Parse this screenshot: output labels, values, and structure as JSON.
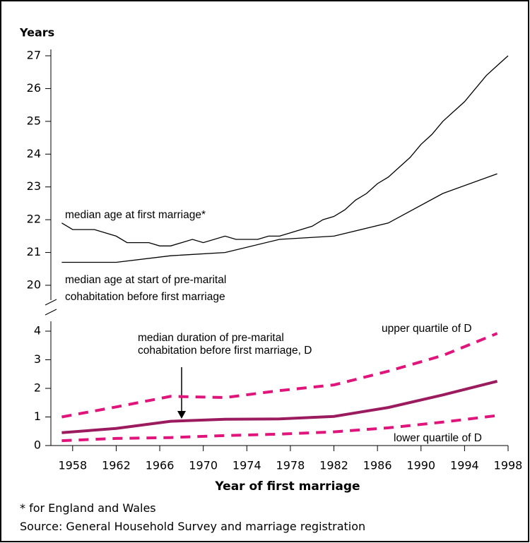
{
  "chart_data": [
    {
      "type": "line",
      "y_label": "Years",
      "xlim": [
        1956,
        1998
      ],
      "ylim": [
        20,
        27
      ],
      "yticks": [
        20,
        21,
        22,
        23,
        24,
        25,
        26,
        27
      ],
      "series": [
        {
          "name": "median age at first marriage*",
          "color": "#000000",
          "dash": false,
          "x": [
            1957,
            1958,
            1960,
            1962,
            1963,
            1965,
            1966,
            1967,
            1969,
            1970,
            1972,
            1973,
            1975,
            1976,
            1977,
            1978,
            1980,
            1981,
            1982,
            1983,
            1984,
            1985,
            1986,
            1987,
            1989,
            1990,
            1991,
            1992,
            1994,
            1996,
            1997,
            1998
          ],
          "values": [
            21.9,
            21.7,
            21.7,
            21.5,
            21.3,
            21.3,
            21.2,
            21.2,
            21.4,
            21.3,
            21.5,
            21.4,
            21.4,
            21.5,
            21.5,
            21.6,
            21.8,
            22.0,
            22.1,
            22.3,
            22.6,
            22.8,
            23.1,
            23.3,
            23.9,
            24.3,
            24.6,
            25.0,
            25.6,
            26.4,
            26.7,
            27.0
          ]
        },
        {
          "name": "median age at start of pre-marital cohabitation before first marriage",
          "color": "#000000",
          "dash": false,
          "x": [
            1957,
            1962,
            1967,
            1972,
            1977,
            1982,
            1987,
            1992,
            1997
          ],
          "values": [
            20.7,
            20.7,
            20.9,
            21.0,
            21.4,
            21.5,
            21.9,
            22.8,
            23.4
          ]
        }
      ]
    },
    {
      "type": "line",
      "x_label": "Year of first marriage",
      "xlim": [
        1956,
        1998
      ],
      "ylim": [
        0,
        4
      ],
      "yticks": [
        0,
        1,
        2,
        3,
        4
      ],
      "xticks": [
        1958,
        1962,
        1966,
        1970,
        1974,
        1978,
        1982,
        1986,
        1990,
        1994,
        1998
      ],
      "series": [
        {
          "name": "median duration of pre-marital cohabitation before first marriage, D",
          "color": "#9b1b5e",
          "dash": false,
          "x": [
            1957,
            1962,
            1967,
            1972,
            1977,
            1982,
            1987,
            1992,
            1997
          ],
          "values": [
            0.45,
            0.6,
            0.85,
            0.92,
            0.93,
            1.02,
            1.33,
            1.77,
            2.25
          ]
        },
        {
          "name": "upper quartile of D",
          "color": "#e0147a",
          "dash": true,
          "x": [
            1957,
            1962,
            1967,
            1972,
            1977,
            1982,
            1987,
            1992,
            1997
          ],
          "values": [
            1.0,
            1.35,
            1.72,
            1.68,
            1.92,
            2.12,
            2.6,
            3.15,
            3.92
          ]
        },
        {
          "name": "lower quartile of D",
          "color": "#e0147a",
          "dash": true,
          "x": [
            1957,
            1962,
            1967,
            1972,
            1977,
            1982,
            1987,
            1992,
            1997
          ],
          "values": [
            0.17,
            0.25,
            0.28,
            0.35,
            0.4,
            0.48,
            0.62,
            0.82,
            1.05
          ]
        }
      ]
    }
  ],
  "notes": [
    "* for England and Wales",
    "Source: General Household Survey and marriage registration"
  ]
}
